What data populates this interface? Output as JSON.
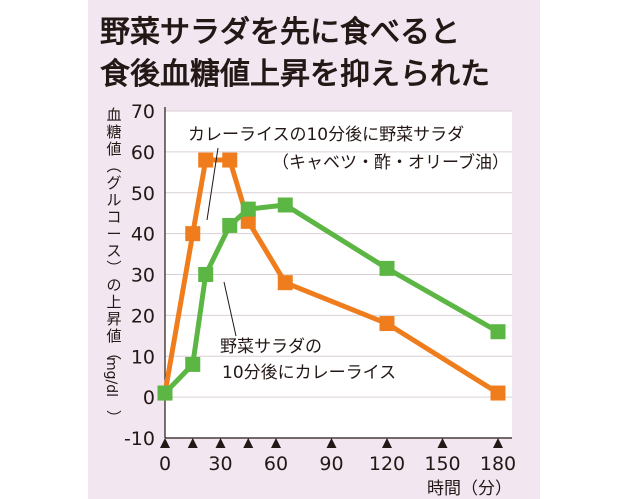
{
  "chart_data": {
    "type": "line",
    "title_lines": [
      "野菜サラダを先に食べると",
      "食後血糖値上昇を抑えられた"
    ],
    "ylabel_lines": [
      "血",
      "糖",
      "値",
      "︵",
      "グ",
      "ル",
      "コ",
      "ー",
      "ス",
      "︶",
      "の",
      "上",
      "昇",
      "値",
      "︵",
      "mg/dl",
      "︶"
    ],
    "xlabel": "時間（分）",
    "x_ticks": [
      0,
      30,
      60,
      90,
      120,
      150,
      180
    ],
    "y_ticks": [
      -10,
      0,
      10,
      20,
      30,
      40,
      50,
      60,
      70
    ],
    "xlim": [
      0,
      180
    ],
    "ylim": [
      -10,
      70
    ],
    "meal_times": [
      0,
      15,
      30,
      45,
      60,
      90,
      120,
      150,
      180
    ],
    "series": [
      {
        "name_lines": [
          "カレーライスの10分後に野菜サラダ",
          "（キャベツ・酢・オリーブ油）"
        ],
        "color": "#f07d1d",
        "x": [
          0,
          15,
          22,
          35,
          45,
          65,
          120,
          180
        ],
        "y": [
          1,
          40,
          58,
          58,
          43,
          28,
          18,
          1
        ]
      },
      {
        "name_lines": [
          "野菜サラダの",
          "10分後にカレーライス"
        ],
        "color": "#5cb644",
        "x": [
          0,
          15,
          22,
          35,
          45,
          65,
          120,
          180
        ],
        "y": [
          1,
          8,
          30,
          42,
          46,
          47,
          31.5,
          16
        ]
      }
    ]
  },
  "colors": {
    "background": "#f2e6f1",
    "plot_background": "#ffffff",
    "grid": "#d9d0d6",
    "text": "#231815"
  }
}
